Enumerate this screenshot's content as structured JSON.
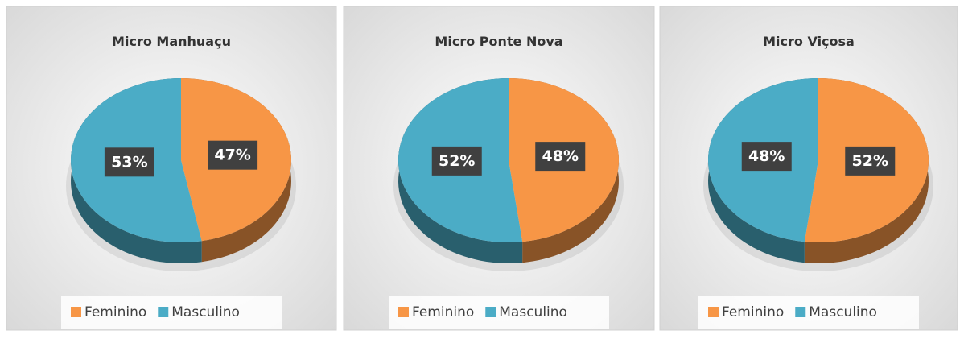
{
  "chart_data": [
    {
      "type": "pie",
      "title": "Micro Manhuaçu",
      "categories": [
        "Feminino",
        "Masculino"
      ],
      "values": [
        47,
        53
      ],
      "value_labels": [
        "47%",
        "53%"
      ],
      "colors": [
        "#f79646",
        "#4bacc6"
      ],
      "legend": "bottom"
    },
    {
      "type": "pie",
      "title": "Micro Ponte Nova",
      "categories": [
        "Feminino",
        "Masculino"
      ],
      "values": [
        48,
        52
      ],
      "value_labels": [
        "48%",
        "52%"
      ],
      "colors": [
        "#f79646",
        "#4bacc6"
      ],
      "legend": "bottom"
    },
    {
      "type": "pie",
      "title": "Micro Viçosa",
      "categories": [
        "Feminino",
        "Masculino"
      ],
      "values": [
        52,
        48
      ],
      "value_labels": [
        "52%",
        "48%"
      ],
      "colors": [
        "#f79646",
        "#4bacc6"
      ],
      "legend": "bottom"
    }
  ]
}
